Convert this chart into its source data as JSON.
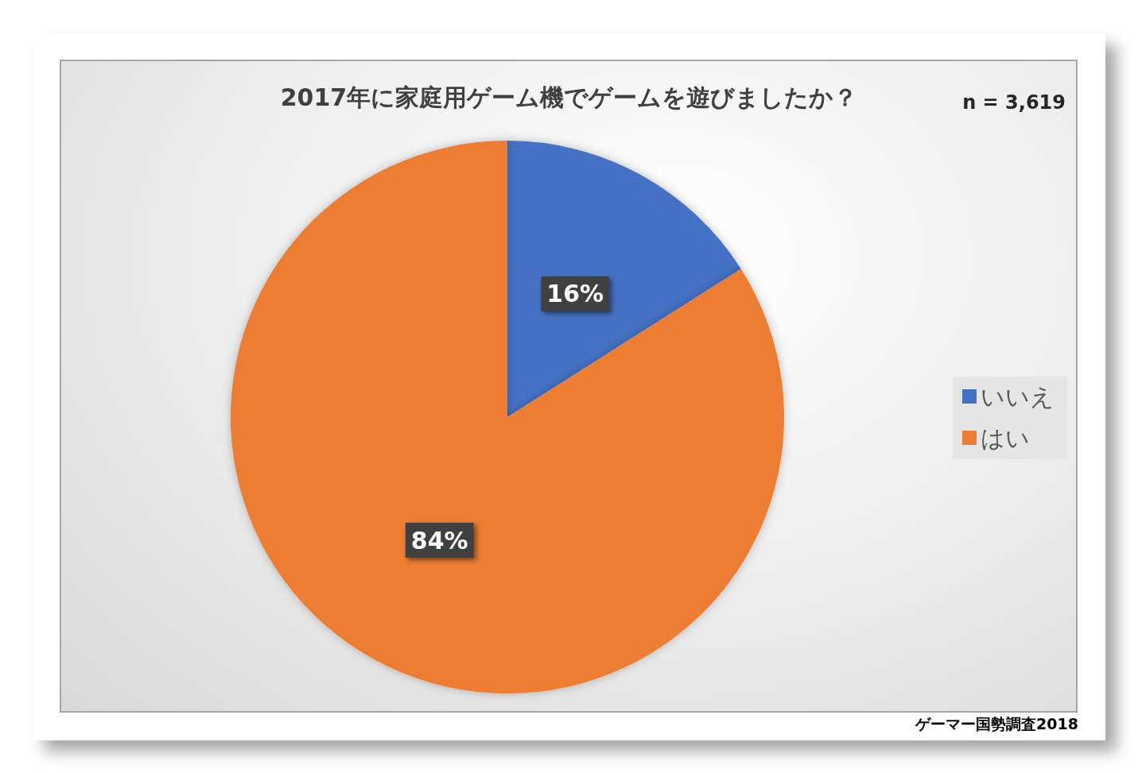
{
  "chart_data": {
    "type": "pie",
    "title": "2017年に家庭用ゲーム機でゲームを遊びましたか？",
    "categories": [
      "いいえ",
      "はい"
    ],
    "values": [
      16,
      84
    ],
    "colors": [
      "#4472c4",
      "#ed7d31"
    ],
    "value_labels": [
      "16%",
      "84%"
    ],
    "legend": "right",
    "annotations": [
      "n = 3,619",
      "ゲーマー国勢調査2018"
    ]
  }
}
